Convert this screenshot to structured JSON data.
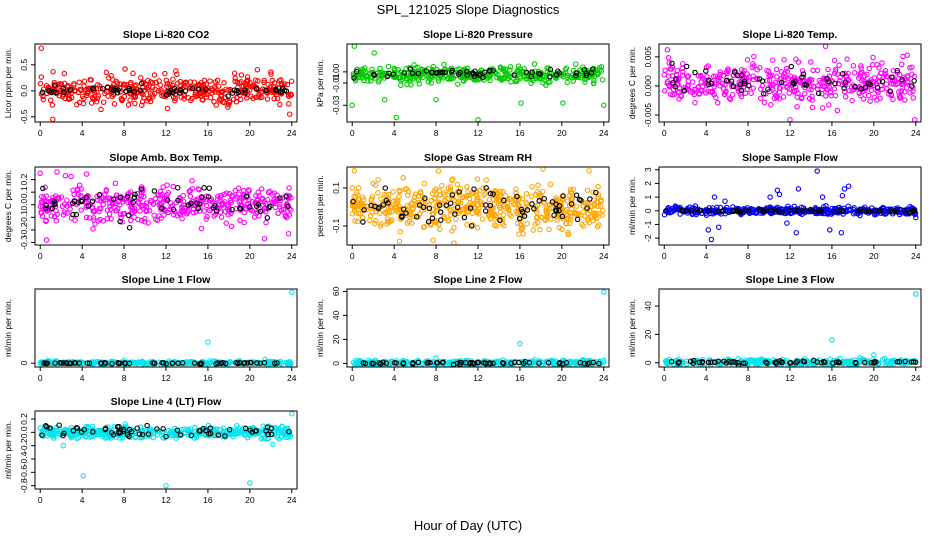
{
  "figure": {
    "title": "SPL_121025  Slope Diagnostics",
    "xlabel": "Hour of Day (UTC)"
  },
  "chart_data": [
    {
      "type": "scatter",
      "title": "Slope Li-820 CO2",
      "ylabel": "Licor ppm per min.",
      "xlim": [
        -0.5,
        24.5
      ],
      "ylim": [
        -0.6,
        0.9
      ],
      "xticks": [
        0,
        4,
        8,
        12,
        16,
        20,
        24
      ],
      "yticks": [
        -0.5,
        0.0,
        0.5
      ],
      "yticklabels": [
        "-0.5",
        "0.0",
        "0.5"
      ],
      "series": [
        {
          "color": "#ff0000",
          "n": 420,
          "center": 0.0,
          "spread": 0.16,
          "outliers": [
            [
              0.1,
              0.82
            ],
            [
              1.2,
              -0.55
            ],
            [
              2.3,
              0.33
            ],
            [
              8.1,
              0.42
            ],
            [
              9.6,
              0.25
            ],
            [
              23.8,
              -0.45
            ]
          ]
        },
        {
          "color": "#000000",
          "n": 55,
          "center": 0.0,
          "spread": 0.05,
          "outliers": []
        }
      ]
    },
    {
      "type": "scatter",
      "title": "Slope Li-820 Pressure",
      "ylabel": "kPa per min.",
      "xlim": [
        -0.5,
        24.5
      ],
      "ylim": [
        -0.045,
        0.025
      ],
      "xticks": [
        0,
        4,
        8,
        12,
        16,
        20,
        24
      ],
      "yticks": [
        -0.03,
        -0.01,
        0.0
      ],
      "yticklabels": [
        "-0.03",
        "-0.01",
        "0.00"
      ],
      "series": [
        {
          "color": "#00cc00",
          "n": 420,
          "center": -0.003,
          "spread": 0.004,
          "outliers": [
            [
              0.0,
              -0.03
            ],
            [
              0.2,
              0.023
            ],
            [
              3.1,
              -0.025
            ],
            [
              4.2,
              -0.041
            ],
            [
              8.0,
              -0.025
            ],
            [
              12.0,
              -0.043
            ],
            [
              16.1,
              -0.028
            ],
            [
              20.1,
              -0.028
            ],
            [
              24.0,
              -0.03
            ],
            [
              2.1,
              0.017
            ]
          ]
        },
        {
          "color": "#000000",
          "n": 55,
          "center": -0.001,
          "spread": 0.002,
          "outliers": []
        }
      ]
    },
    {
      "type": "scatter",
      "title": "Slope Li-820 Temp.",
      "ylabel": "degrees C per min.",
      "xlim": [
        -0.5,
        24.5
      ],
      "ylim": [
        -0.0062,
        0.0072
      ],
      "xticks": [
        0,
        4,
        8,
        12,
        16,
        20,
        24
      ],
      "yticks": [
        -0.005,
        0.0,
        0.005
      ],
      "yticklabels": [
        "-0.005",
        "0.000",
        "0.005"
      ],
      "series": [
        {
          "color": "#ff00ff",
          "n": 440,
          "center": 0.0006,
          "spread": 0.0021,
          "outliers": [
            [
              0.3,
              0.0062
            ],
            [
              15.4,
              0.0068
            ],
            [
              12.0,
              -0.0058
            ],
            [
              23.9,
              -0.0058
            ]
          ]
        },
        {
          "color": "#000000",
          "n": 55,
          "center": 0.0006,
          "spread": 0.0013,
          "outliers": []
        }
      ]
    },
    {
      "type": "scatter",
      "title": "Slope Amb. Box Temp.",
      "ylabel": "degrees C per min.",
      "xlim": [
        -0.5,
        24.5
      ],
      "ylim": [
        -0.32,
        0.3
      ],
      "xticks": [
        0,
        4,
        8,
        12,
        16,
        20,
        24
      ],
      "yticks": [
        -0.3,
        -0.2,
        -0.1,
        0.0,
        0.1,
        0.2
      ],
      "yticklabels": [
        "-0.3",
        "-0.2",
        "-0.1",
        "0.0",
        "0.1",
        "0.2"
      ],
      "series": [
        {
          "color": "#ff00ff",
          "n": 440,
          "center": 0.0,
          "spread": 0.08,
          "outliers": [
            [
              0.0,
              0.25
            ],
            [
              1.6,
              0.26
            ],
            [
              0.6,
              -0.28
            ],
            [
              21.4,
              -0.27
            ],
            [
              2.4,
              0.23
            ],
            [
              23.7,
              -0.23
            ]
          ]
        },
        {
          "color": "#000000",
          "n": 60,
          "center": 0.02,
          "spread": 0.07,
          "outliers": []
        }
      ]
    },
    {
      "type": "scatter",
      "title": "Slope Gas Stream RH",
      "ylabel": "percent per min.",
      "xlim": [
        -0.5,
        24.5
      ],
      "ylim": [
        -0.2,
        0.21
      ],
      "xticks": [
        0,
        4,
        8,
        12,
        16,
        20,
        24
      ],
      "yticks": [
        -0.1,
        0.1
      ],
      "yticklabels": [
        "-0.1",
        "0.1"
      ],
      "series": [
        {
          "color": "#ffa500",
          "n": 520,
          "center": 0.0,
          "spread": 0.07,
          "outliers": [
            [
              0.2,
              0.19
            ],
            [
              4.5,
              -0.18
            ],
            [
              9.7,
              -0.19
            ],
            [
              18.2,
              0.2
            ],
            [
              22.6,
              0.19
            ]
          ]
        },
        {
          "color": "#000000",
          "n": 70,
          "center": 0.0,
          "spread": 0.05,
          "outliers": []
        }
      ]
    },
    {
      "type": "scatter",
      "title": "Slope Sample Flow",
      "ylabel": "ml/min per min.",
      "xlim": [
        -0.5,
        24.5
      ],
      "ylim": [
        -2.5,
        3.2
      ],
      "xticks": [
        0,
        4,
        8,
        12,
        16,
        20,
        24
      ],
      "yticks": [
        -2,
        -1,
        0,
        1,
        2,
        3
      ],
      "yticklabels": [
        "-2",
        "-1",
        "0",
        "1",
        "2",
        "3"
      ],
      "series": [
        {
          "color": "#0000ff",
          "n": 380,
          "center": 0.0,
          "spread": 0.15,
          "outliers": [
            [
              4.5,
              -2.1
            ],
            [
              4.2,
              -1.4
            ],
            [
              4.8,
              1.0
            ],
            [
              5.2,
              -1.2
            ],
            [
              10.1,
              1.0
            ],
            [
              10.8,
              1.5
            ],
            [
              11.0,
              1.2
            ],
            [
              12.6,
              -1.6
            ],
            [
              12.8,
              1.6
            ],
            [
              14.6,
              2.9
            ],
            [
              15.8,
              -1.4
            ],
            [
              16.9,
              -1.6
            ],
            [
              17.2,
              1.6
            ],
            [
              17.6,
              1.8
            ],
            [
              17.0,
              1.1
            ],
            [
              15.1,
              1.0
            ],
            [
              24.0,
              -0.5
            ],
            [
              5.8,
              0.7
            ],
            [
              11.7,
              -0.9
            ]
          ]
        },
        {
          "color": "#000000",
          "n": 70,
          "center": 0.0,
          "spread": 0.06,
          "outliers": []
        }
      ]
    },
    {
      "type": "scatter",
      "title": "Slope Line 1 Flow",
      "ylabel": "ml/min per min.",
      "xlim": [
        -0.5,
        24.5
      ],
      "ylim": [
        -3,
        58
      ],
      "xticks": [
        0,
        4,
        8,
        12,
        16,
        20,
        24
      ],
      "yticks": [
        0
      ],
      "yticklabels": [
        "0"
      ],
      "series": [
        {
          "color": "#00e5ee",
          "n": 300,
          "center": 0.3,
          "spread": 0.7,
          "outliers": [
            [
              16.0,
              16.5
            ],
            [
              24.0,
              55.5
            ]
          ]
        },
        {
          "color": "#000000",
          "n": 60,
          "center": 0.0,
          "spread": 0.3,
          "outliers": []
        }
      ]
    },
    {
      "type": "scatter",
      "title": "Slope Line 2 Flow",
      "ylabel": "ml/min per min.",
      "xlim": [
        -0.5,
        24.5
      ],
      "ylim": [
        -3,
        62
      ],
      "xticks": [
        0,
        4,
        8,
        12,
        16,
        20,
        24
      ],
      "yticks": [
        0,
        20,
        40,
        60
      ],
      "yticklabels": [
        "0",
        "20",
        "40",
        "60"
      ],
      "series": [
        {
          "color": "#00e5ee",
          "n": 300,
          "center": 0.5,
          "spread": 1.2,
          "outliers": [
            [
              16.0,
              16.5
            ],
            [
              24.0,
              59.5
            ],
            [
              8.0,
              4.5
            ]
          ]
        },
        {
          "color": "#000000",
          "n": 60,
          "center": 0.3,
          "spread": 0.6,
          "outliers": []
        }
      ]
    },
    {
      "type": "scatter",
      "title": "Slope Line 3 Flow",
      "ylabel": "ml/min per min.",
      "xlim": [
        -0.5,
        24.5
      ],
      "ylim": [
        -3,
        52
      ],
      "xticks": [
        0,
        4,
        8,
        12,
        16,
        20,
        24
      ],
      "yticks": [
        0,
        20,
        40
      ],
      "yticklabels": [
        "0",
        "20",
        "40"
      ],
      "series": [
        {
          "color": "#00e5ee",
          "n": 300,
          "center": 0.5,
          "spread": 1.2,
          "outliers": [
            [
              16.0,
              16.0
            ],
            [
              24.0,
              48.5
            ],
            [
              20.0,
              5.5
            ]
          ]
        },
        {
          "color": "#000000",
          "n": 60,
          "center": 0.3,
          "spread": 0.6,
          "outliers": []
        }
      ]
    },
    {
      "type": "scatter",
      "title": "Slope Line 4 (LT) Flow",
      "ylabel": "ml/min per min.",
      "xlim": [
        -0.5,
        24.5
      ],
      "ylim": [
        -0.85,
        0.32
      ],
      "xticks": [
        0,
        4,
        8,
        12,
        16,
        20,
        24
      ],
      "yticks": [
        -0.8,
        -0.6,
        -0.4,
        -0.2,
        0.0,
        0.2
      ],
      "yticklabels": [
        "-0.8",
        "-0.6",
        "-0.4",
        "-0.2",
        "0.0",
        "0.2"
      ],
      "series": [
        {
          "color": "#00e5ee",
          "n": 420,
          "center": 0.0,
          "spread": 0.05,
          "outliers": [
            [
              4.1,
              -0.65
            ],
            [
              12.0,
              -0.8
            ],
            [
              20.0,
              -0.76
            ],
            [
              24.0,
              0.28
            ],
            [
              2.2,
              -0.2
            ],
            [
              22.2,
              -0.18
            ]
          ]
        },
        {
          "color": "#000000",
          "n": 60,
          "center": 0.02,
          "spread": 0.05,
          "outliers": []
        }
      ]
    }
  ]
}
